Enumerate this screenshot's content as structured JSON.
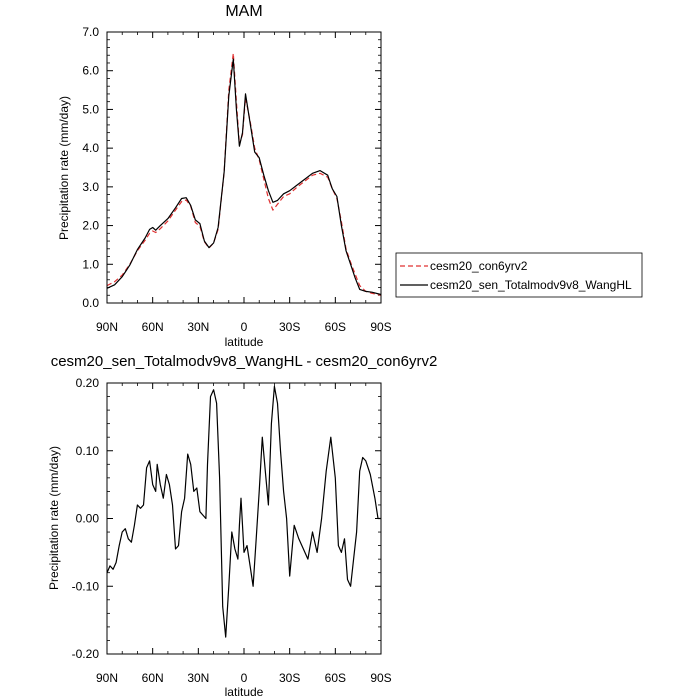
{
  "chart_data": [
    {
      "type": "line",
      "title": "MAM",
      "xlabel": "latitude",
      "ylabel": "Precipitation rate (mm/day)",
      "xlim": [
        90,
        -90
      ],
      "ylim": [
        0,
        7
      ],
      "x_ticks": [
        90,
        60,
        30,
        0,
        -30,
        -60,
        -90
      ],
      "x_tick_labels": [
        "90N",
        "60N",
        "30N",
        "0",
        "30S",
        "60S",
        "90S"
      ],
      "y_ticks": [
        0,
        1,
        2,
        3,
        4,
        5,
        6,
        7
      ],
      "y_tick_labels": [
        "0.0",
        "1.0",
        "2.0",
        "3.0",
        "4.0",
        "5.0",
        "6.0",
        "7.0"
      ],
      "legend_position": "right",
      "series": [
        {
          "name": "cesm20_con6yrv2",
          "color": "#e03030",
          "dash": "dashed",
          "x": [
            90,
            85,
            80,
            75,
            70,
            65,
            62,
            60,
            58,
            55,
            50,
            45,
            41,
            38,
            35,
            32,
            29,
            26,
            23,
            20,
            17,
            13,
            10,
            7,
            5,
            3,
            1,
            -1,
            -4,
            -7,
            -10,
            -13,
            -16,
            -19,
            -22,
            -26,
            -30,
            -35,
            -40,
            -45,
            -50,
            -55,
            -58,
            -61,
            -64,
            -67,
            -70,
            -73,
            -76,
            -80,
            -84,
            -90
          ],
          "values": [
            0.45,
            0.55,
            0.72,
            1.0,
            1.35,
            1.62,
            1.8,
            1.86,
            1.82,
            1.92,
            2.12,
            2.4,
            2.62,
            2.66,
            2.5,
            2.08,
            1.98,
            1.58,
            1.42,
            1.55,
            1.9,
            3.4,
            5.5,
            6.45,
            5.2,
            4.1,
            4.35,
            5.3,
            4.7,
            4.0,
            3.7,
            3.2,
            2.7,
            2.4,
            2.55,
            2.75,
            2.82,
            3.0,
            3.15,
            3.3,
            3.35,
            3.25,
            2.95,
            2.7,
            2.1,
            1.4,
            1.05,
            0.75,
            0.45,
            0.3,
            0.25,
            0.2
          ]
        },
        {
          "name": "cesm20_sen_Totalmodv9v8_WangHL",
          "color": "#000000",
          "dash": "solid",
          "x": [
            90,
            85,
            80,
            75,
            70,
            65,
            62,
            60,
            58,
            55,
            50,
            45,
            41,
            38,
            35,
            32,
            29,
            26,
            23,
            20,
            17,
            13,
            10,
            7,
            5,
            3,
            1,
            -1,
            -4,
            -7,
            -10,
            -13,
            -16,
            -19,
            -22,
            -26,
            -30,
            -35,
            -40,
            -45,
            -50,
            -55,
            -58,
            -61,
            -64,
            -67,
            -70,
            -73,
            -76,
            -80,
            -84,
            -90
          ],
          "values": [
            0.38,
            0.47,
            0.68,
            0.98,
            1.38,
            1.68,
            1.9,
            1.95,
            1.88,
            2.0,
            2.18,
            2.46,
            2.7,
            2.72,
            2.52,
            2.15,
            2.05,
            1.6,
            1.43,
            1.55,
            1.95,
            3.4,
            5.35,
            6.3,
            5.0,
            4.05,
            4.4,
            5.4,
            4.65,
            3.9,
            3.75,
            3.3,
            2.9,
            2.6,
            2.65,
            2.82,
            2.9,
            3.05,
            3.2,
            3.35,
            3.42,
            3.3,
            2.95,
            2.75,
            2.0,
            1.35,
            1.0,
            0.65,
            0.35,
            0.3,
            0.28,
            0.22
          ]
        }
      ]
    },
    {
      "type": "line",
      "title": "cesm20_sen_Totalmodv9v8_WangHL - cesm20_con6yrv2",
      "xlabel": "latitude",
      "ylabel": "Precipitation rate (mm/day)",
      "xlim": [
        90,
        -90
      ],
      "ylim": [
        -0.2,
        0.2
      ],
      "x_ticks": [
        90,
        60,
        30,
        0,
        -30,
        -60,
        -90
      ],
      "x_tick_labels": [
        "90N",
        "60N",
        "30N",
        "0",
        "30S",
        "60S",
        "90S"
      ],
      "y_ticks": [
        -0.2,
        -0.1,
        0,
        0.1,
        0.2
      ],
      "y_tick_labels": [
        "-0.20",
        "-0.10",
        "0.00",
        "0.10",
        "0.20"
      ],
      "series": [
        {
          "name": "",
          "color": "#000000",
          "dash": "solid",
          "x": [
            90,
            88,
            86,
            84,
            82,
            80,
            78,
            76,
            74,
            72,
            70,
            68,
            66,
            64,
            62,
            60,
            58,
            57,
            55,
            53,
            51,
            49,
            47,
            45,
            43,
            41,
            39,
            37,
            35,
            33,
            31,
            29,
            27,
            25,
            24,
            22,
            20,
            18,
            16,
            14,
            12,
            10,
            8,
            6,
            4,
            3,
            2,
            0,
            -2,
            -4,
            -6,
            -8,
            -10,
            -12,
            -14,
            -16,
            -18,
            -20,
            -22,
            -24,
            -26,
            -28,
            -30,
            -33,
            -36,
            -39,
            -42,
            -45,
            -48,
            -51,
            -54,
            -57,
            -60,
            -62,
            -64,
            -66,
            -68,
            -70,
            -72,
            -74,
            -76,
            -78,
            -80,
            -83,
            -86,
            -88,
            -90
          ],
          "values": [
            -0.08,
            -0.07,
            -0.075,
            -0.065,
            -0.04,
            -0.02,
            -0.015,
            -0.03,
            -0.035,
            -0.01,
            0.02,
            0.015,
            0.02,
            0.075,
            0.085,
            0.05,
            0.04,
            0.08,
            0.05,
            0.03,
            0.065,
            0.05,
            0.02,
            -0.045,
            -0.04,
            0.01,
            0.03,
            0.095,
            0.08,
            0.04,
            0.045,
            0.01,
            0.005,
            0.0,
            0.08,
            0.18,
            0.19,
            0.17,
            0.06,
            -0.13,
            -0.175,
            -0.1,
            -0.02,
            -0.045,
            -0.06,
            -0.01,
            0.03,
            -0.05,
            -0.04,
            -0.07,
            -0.1,
            -0.03,
            0.04,
            0.12,
            0.07,
            0.02,
            0.14,
            0.195,
            0.17,
            0.1,
            0.04,
            0.0,
            -0.085,
            -0.01,
            -0.03,
            -0.045,
            -0.06,
            -0.02,
            -0.05,
            0.0,
            0.07,
            0.12,
            0.06,
            -0.04,
            -0.05,
            -0.03,
            -0.09,
            -0.1,
            -0.06,
            -0.02,
            0.07,
            0.09,
            0.085,
            0.065,
            0.03,
            0.0,
            0.0
          ]
        }
      ]
    }
  ]
}
